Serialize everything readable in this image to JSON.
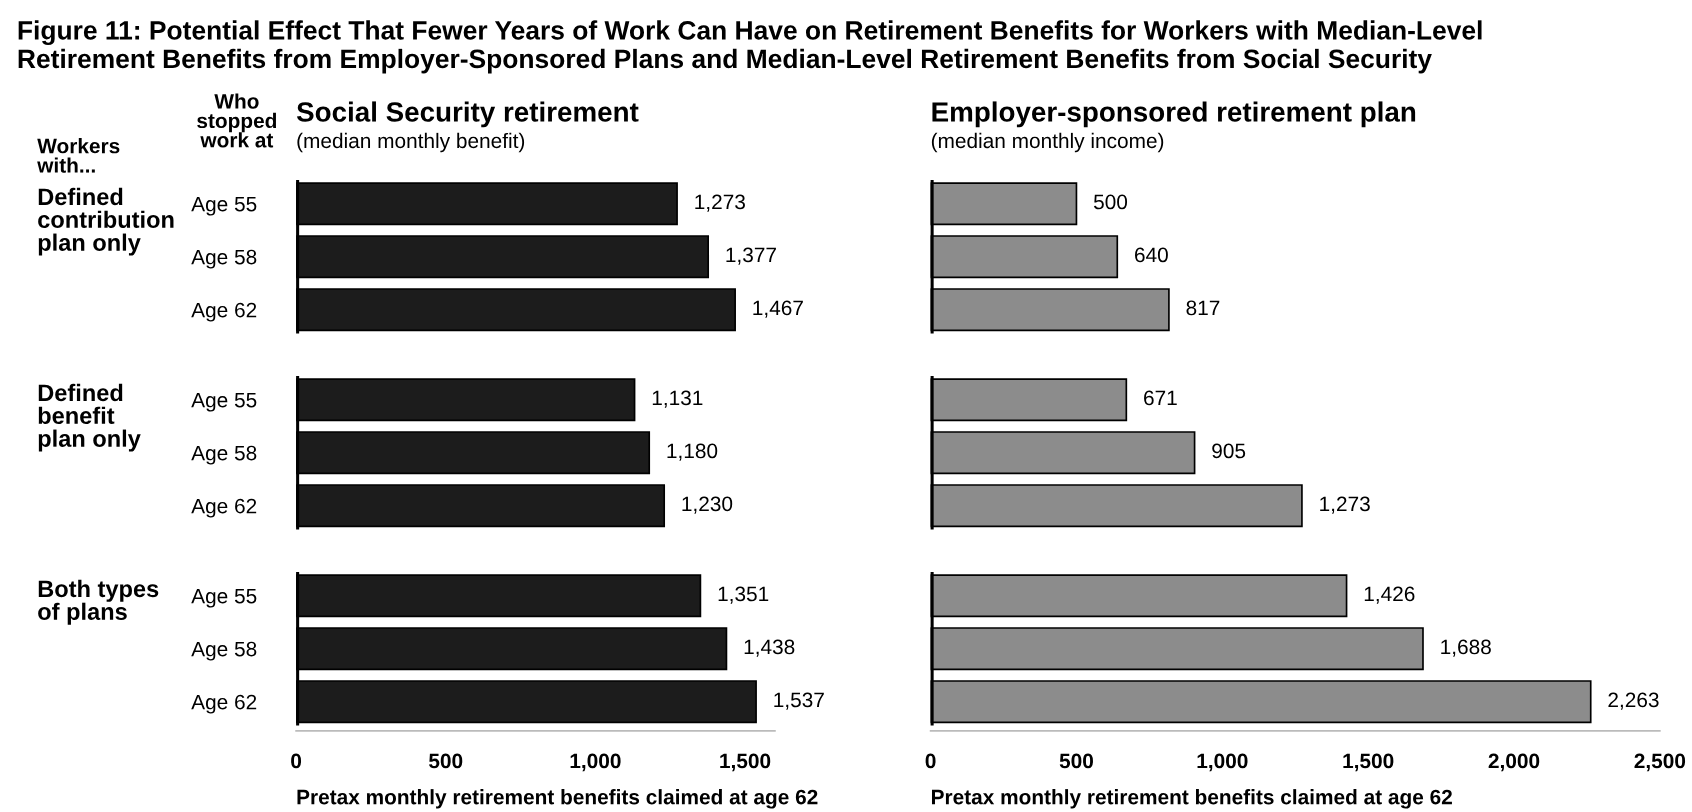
{
  "chart_data": [
    {
      "type": "bar",
      "orientation": "horizontal",
      "title": "Social Security retirement",
      "subtitle": "(median monthly benefit)",
      "xlabel": "Pretax monthly retirement benefits claimed at age 62",
      "categories": [
        "Age 55",
        "Age 58",
        "Age 62",
        "Age 55",
        "Age 58",
        "Age 62",
        "Age 55",
        "Age 58",
        "Age 62"
      ],
      "values": [
        1273,
        1377,
        1467,
        1131,
        1180,
        1230,
        1351,
        1438,
        1537
      ],
      "color": "#1c1c1c",
      "value_labels": [
        "1,273",
        "1,377",
        "1,467",
        "1,131",
        "1,180",
        "1,230",
        "1,351",
        "1,438",
        "1,537"
      ],
      "xlim": [
        0,
        1600
      ],
      "xticks": [
        0,
        500,
        {
          "value": 1000,
          "label": "1,000"
        },
        {
          "value": 1500,
          "label": "1,500"
        }
      ],
      "grid": false,
      "annotations": [
        "Figure 11: Potential Effect That Fewer Years of Work Can Have on Retirement Benefits for Workers with Median-Level\nRetirement Benefits from Employer-Sponsored Plans and Median-Level Retirement Benefits from Social Security",
        "Workers\nwith...",
        "Who\nstopped\nwork at",
        "Defined\ncontribution\nplan only",
        "Defined\nbenefit\nplan only",
        "Both types\nof plans"
      ]
    },
    {
      "type": "bar",
      "orientation": "horizontal",
      "title": "Employer-sponsored retirement plan",
      "subtitle": "(median monthly income)",
      "xlabel": "Pretax monthly retirement benefits claimed at age 62",
      "values": [
        500,
        640,
        817,
        671,
        905,
        1273,
        1426,
        1688,
        2263
      ],
      "color": "#8c8c8c",
      "value_labels": [
        "500",
        "640",
        "817",
        "671",
        "905",
        "1,273",
        "1,426",
        "1,688",
        "2,263"
      ],
      "xlim": [
        0,
        2500
      ],
      "xticks": [
        0,
        500,
        {
          "value": 1000,
          "label": "1,000"
        },
        {
          "value": 1500,
          "label": "1,500"
        },
        {
          "value": 2000,
          "label": "2,000"
        },
        {
          "value": 2500,
          "label": "2,500"
        }
      ],
      "grid": false
    }
  ]
}
